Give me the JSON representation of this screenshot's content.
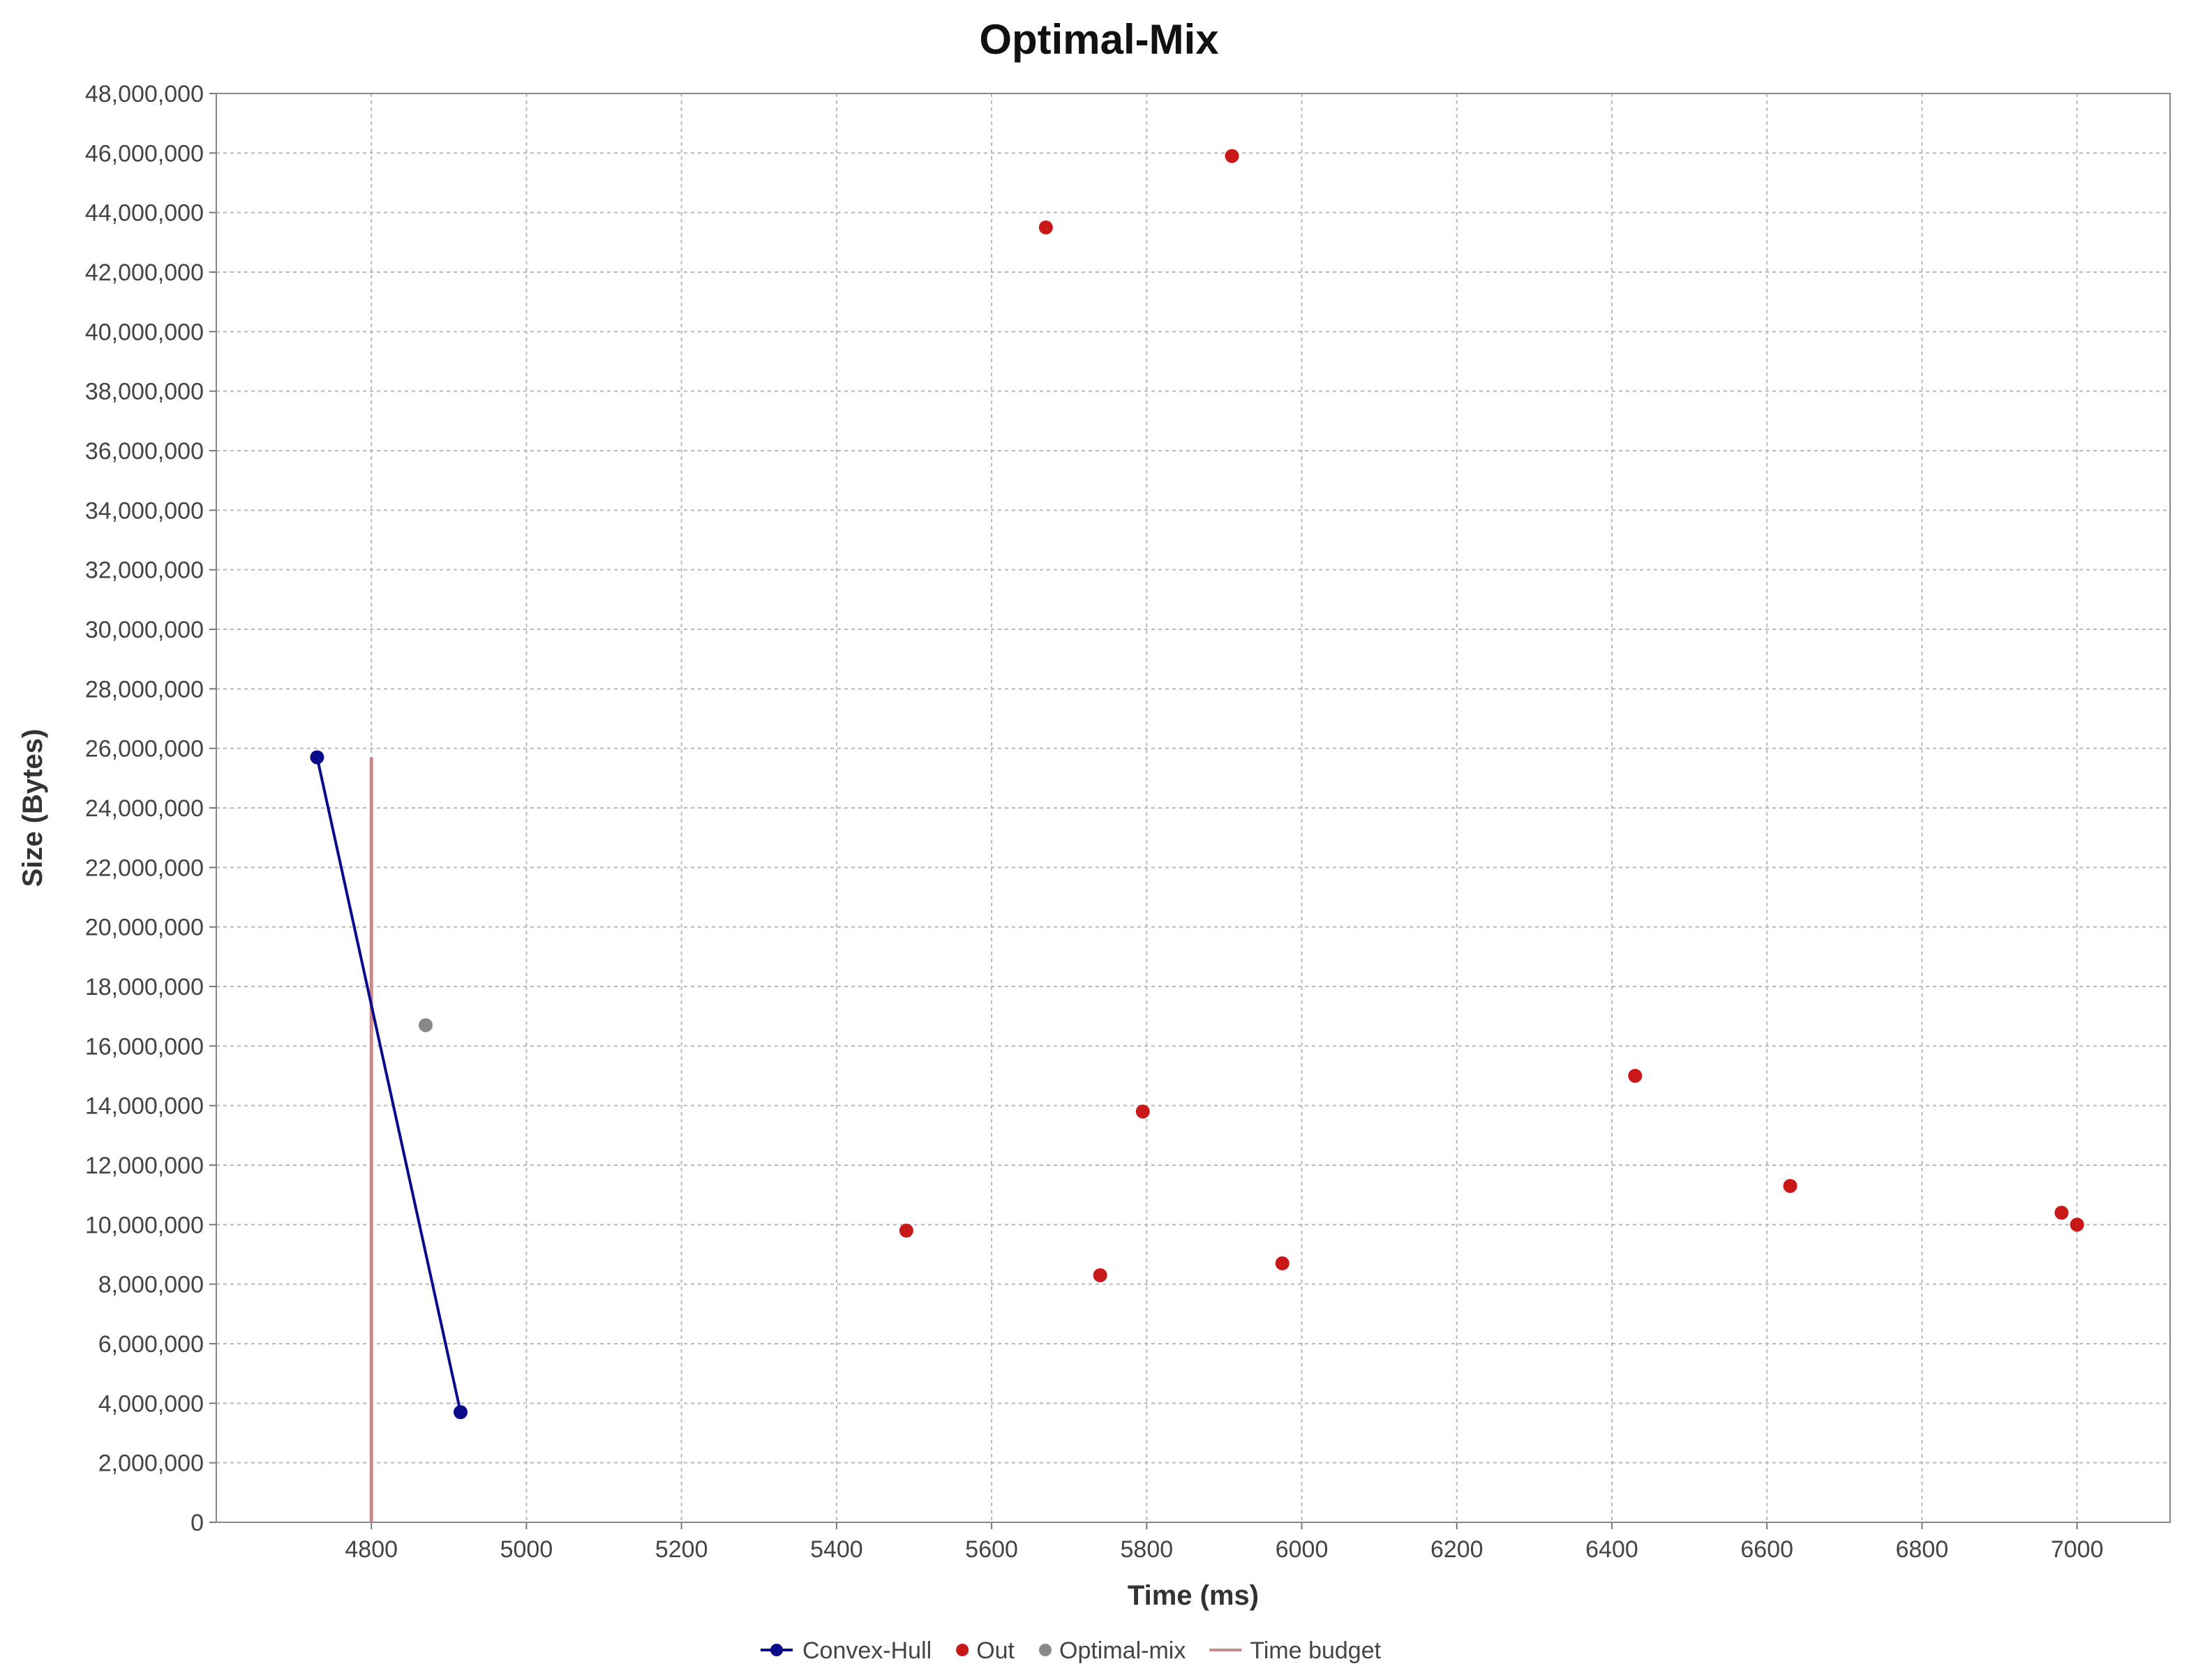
{
  "chart_data": {
    "type": "scatter",
    "title": "Optimal-Mix",
    "xlabel": "Time (ms)",
    "ylabel": "Size (Bytes)",
    "xlim": [
      4600,
      7120
    ],
    "ylim": [
      0,
      48000000
    ],
    "x_ticks": [
      4800,
      5000,
      5200,
      5400,
      5600,
      5800,
      6000,
      6200,
      6400,
      6600,
      6800,
      7000
    ],
    "x_tick_labels": [
      "4800",
      "5000",
      "5200",
      "5400",
      "5600",
      "5800",
      "6000",
      "6200",
      "6400",
      "6600",
      "6800",
      "7000"
    ],
    "y_ticks": [
      0,
      2000000,
      4000000,
      6000000,
      8000000,
      10000000,
      12000000,
      14000000,
      16000000,
      18000000,
      20000000,
      22000000,
      24000000,
      26000000,
      28000000,
      30000000,
      32000000,
      34000000,
      36000000,
      38000000,
      40000000,
      42000000,
      44000000,
      46000000,
      48000000
    ],
    "y_tick_labels": [
      "0",
      "2,000,000",
      "4,000,000",
      "6,000,000",
      "8,000,000",
      "10,000,000",
      "12,000,000",
      "14,000,000",
      "16,000,000",
      "18,000,000",
      "20,000,000",
      "22,000,000",
      "24,000,000",
      "26,000,000",
      "28,000,000",
      "30,000,000",
      "32,000,000",
      "34,000,000",
      "36,000,000",
      "38,000,000",
      "40,000,000",
      "42,000,000",
      "44,000,000",
      "46,000,000",
      "48,000,000"
    ],
    "grid": true,
    "legend_position": "bottom-center",
    "series": [
      {
        "name": "Convex-Hull",
        "kind": "line-markers",
        "color": "#0a0a8c",
        "points": [
          [
            4730,
            25700000
          ],
          [
            4915,
            3700000
          ]
        ]
      },
      {
        "name": "Out",
        "kind": "markers",
        "color": "#c81818",
        "points": [
          [
            5490,
            9800000
          ],
          [
            5670,
            43500000
          ],
          [
            5740,
            8300000
          ],
          [
            5795,
            13800000
          ],
          [
            5910,
            45900000
          ],
          [
            5975,
            8700000
          ],
          [
            6430,
            15000000
          ],
          [
            6630,
            11300000
          ],
          [
            6980,
            10400000
          ],
          [
            7000,
            10000000
          ]
        ]
      },
      {
        "name": "Optimal-mix",
        "kind": "markers",
        "color": "#888888",
        "points": [
          [
            4870,
            16700000
          ]
        ]
      },
      {
        "name": "Time budget",
        "kind": "line",
        "color": "#c88888",
        "points": [
          [
            4800,
            0
          ],
          [
            4800,
            25700000
          ]
        ]
      }
    ]
  }
}
